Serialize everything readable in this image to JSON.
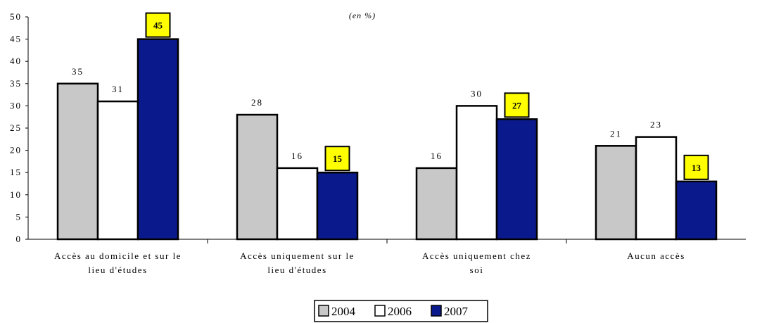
{
  "chart_data": {
    "type": "bar",
    "unit_note": "(en %)",
    "categories": [
      [
        "Accès au domicile et sur le",
        "lieu d'études"
      ],
      [
        "Accès uniquement sur le",
        "lieu d'études"
      ],
      [
        "Accès uniquement chez",
        "soi"
      ],
      [
        "Aucun accès"
      ]
    ],
    "series": [
      {
        "name": "2004",
        "values": [
          35,
          28,
          16,
          21
        ],
        "color": "#c8c8c8"
      },
      {
        "name": "2006",
        "values": [
          31,
          16,
          30,
          23
        ],
        "color": "#ffffff"
      },
      {
        "name": "2007",
        "values": [
          45,
          15,
          27,
          13
        ],
        "color": "#0a1a8c"
      }
    ],
    "highlighted_series": "2007",
    "highlight_color": "#ffff00",
    "ylim": [
      0,
      50
    ],
    "yticks": [
      0,
      5,
      10,
      15,
      20,
      25,
      30,
      35,
      40,
      45,
      50
    ],
    "grid": false,
    "legend_position": "bottom-center"
  }
}
